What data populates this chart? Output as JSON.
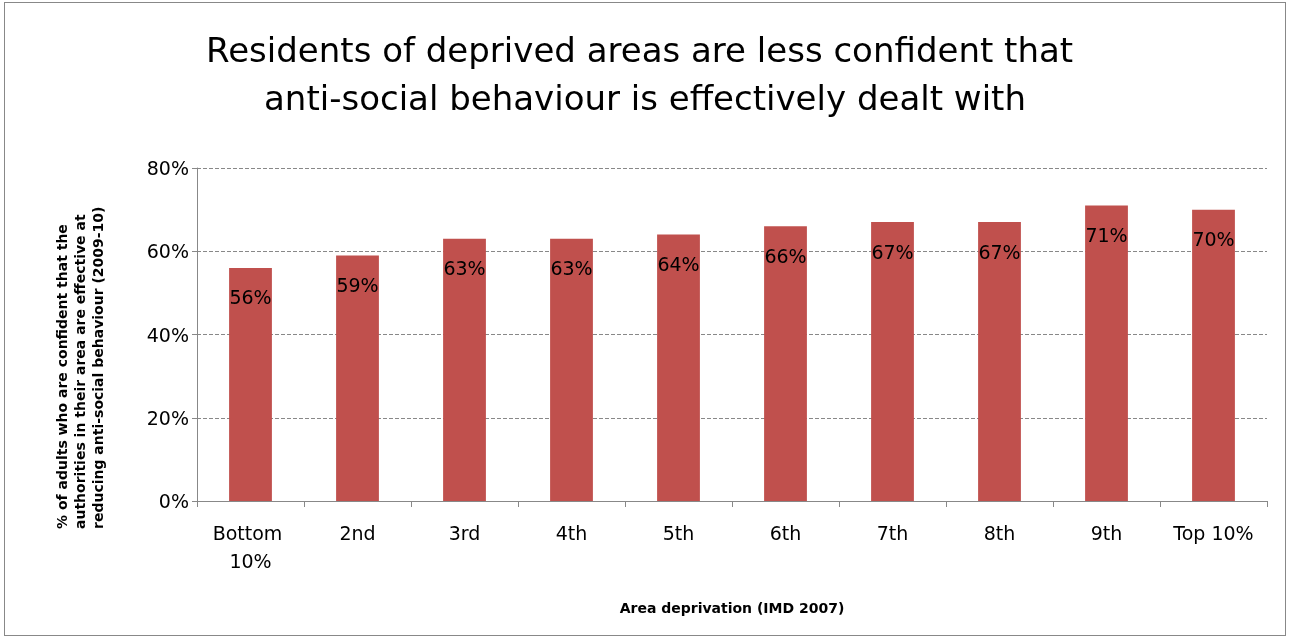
{
  "chart_data": {
    "type": "bar",
    "title": "Residents of deprived areas are less confident that anti-social behaviour is effectively dealt with",
    "xlabel": "Area deprivation (IMD 2007)",
    "ylabel": "% of adults who are confident that the authorities in their area are effective at reducing anti-social behaviour (2009-10)",
    "categories": [
      "Bottom 10%",
      "2nd",
      "3rd",
      "4th",
      "5th",
      "6th",
      "7th",
      "8th",
      "9th",
      "Top 10%"
    ],
    "values": [
      56,
      59,
      63,
      63,
      64,
      66,
      67,
      67,
      71,
      70
    ],
    "value_labels": [
      "56%",
      "59%",
      "63%",
      "63%",
      "64%",
      "66%",
      "67%",
      "67%",
      "71%",
      "70%"
    ],
    "color": "#c0504d",
    "ylim": [
      0,
      80
    ],
    "yticks": [
      {
        "value": 0,
        "label": "0%"
      },
      {
        "value": 20,
        "label": "20%"
      },
      {
        "value": 40,
        "label": "40%"
      },
      {
        "value": 60,
        "label": "60%"
      },
      {
        "value": 80,
        "label": "80%"
      }
    ],
    "grid": "y"
  }
}
